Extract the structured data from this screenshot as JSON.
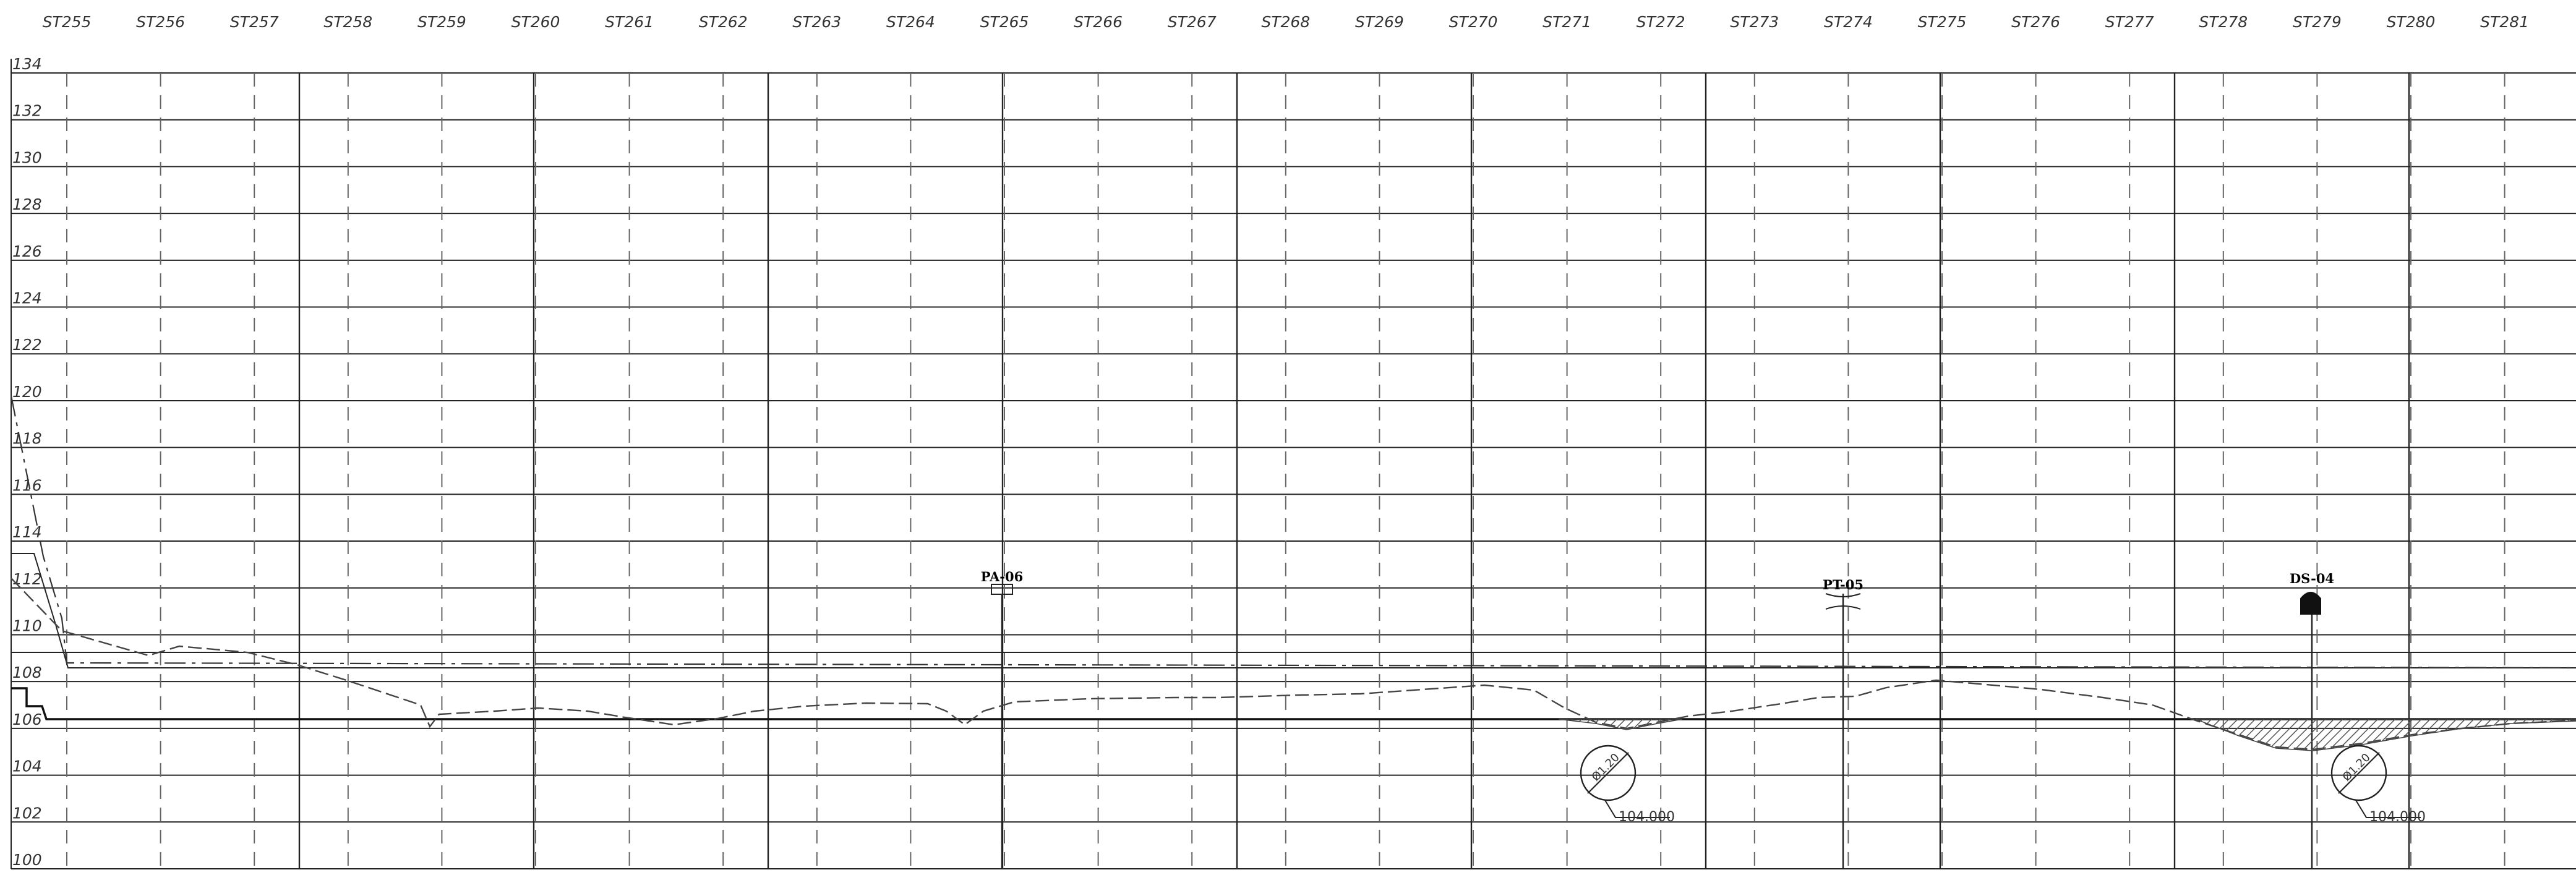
{
  "stations": [
    "ST255",
    "ST256",
    "ST257",
    "ST258",
    "ST259",
    "ST260",
    "ST261",
    "ST262",
    "ST263",
    "ST264",
    "ST265",
    "ST266",
    "ST267",
    "ST268",
    "ST269",
    "ST270",
    "ST271",
    "ST272",
    "ST273",
    "ST274",
    "ST275",
    "ST276",
    "ST277",
    "ST278",
    "ST279",
    "ST280",
    "ST281"
  ],
  "elevations": [
    "134",
    "132",
    "130",
    "128",
    "126",
    "124",
    "122",
    "120",
    "118",
    "116",
    "114",
    "112",
    "110",
    "108",
    "106",
    "104",
    "102",
    "100"
  ],
  "structures": [
    {
      "tag": "PA-06",
      "station": "ST265",
      "type": "rectangle-marker"
    },
    {
      "tag": "PT-05",
      "station": "ST274",
      "type": "bracket-marker"
    },
    {
      "tag": "DS-04",
      "station": "ST279",
      "type": "arch-marker"
    }
  ],
  "pipe_callouts": [
    {
      "diameter": "Ø1.20",
      "invert": "104.000",
      "station": "ST271"
    },
    {
      "diameter": "Ø1.20",
      "invert": "104.000",
      "station": "ST279"
    }
  ],
  "colors": {
    "line": "#222222",
    "dashed": "#666666",
    "hatch": "#555555"
  }
}
